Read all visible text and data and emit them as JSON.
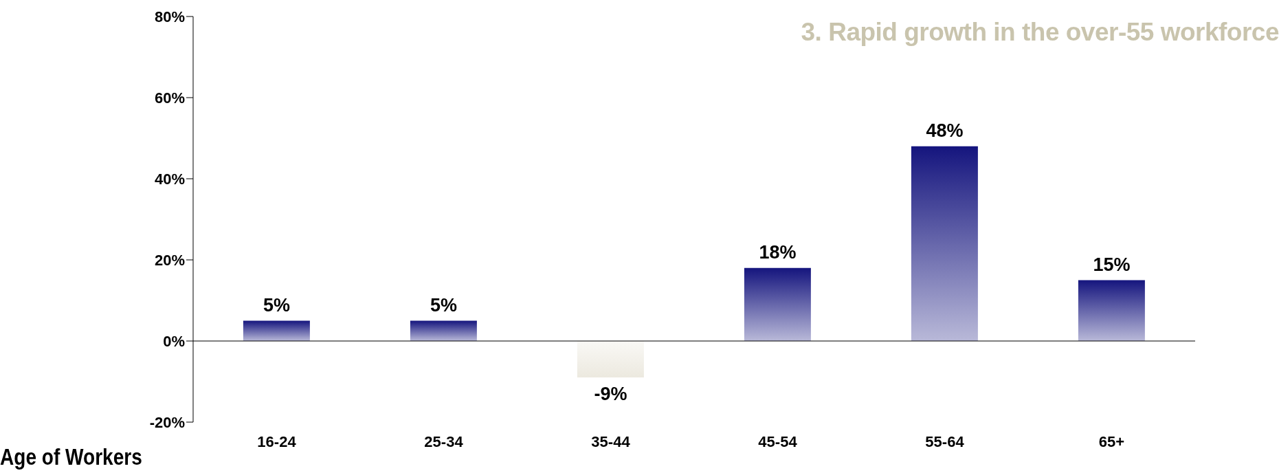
{
  "chart_data": {
    "type": "bar",
    "title": "3.  Rapid growth in the over-55 workforce",
    "xlabel": "Age of Workers",
    "categories": [
      "16-24",
      "25-34",
      "35-44",
      "45-54",
      "55-64",
      "65+"
    ],
    "values": [
      5,
      5,
      -9,
      18,
      48,
      15
    ],
    "colors": [
      "#15157e",
      "#15157e",
      "#ece9df",
      "#15157e",
      "#15157e",
      "#15157e"
    ],
    "value_labels": [
      "5%",
      "5%",
      "-9%",
      "18%",
      "48%",
      "15%"
    ],
    "ylim": [
      -20,
      80
    ],
    "yticks": [
      {
        "value": -20,
        "label": "-20%"
      },
      {
        "value": 0,
        "label": "0%"
      },
      {
        "value": 20,
        "label": "20%"
      },
      {
        "value": 40,
        "label": "40%"
      },
      {
        "value": 60,
        "label": "60%"
      },
      {
        "value": 80,
        "label": "80%"
      }
    ],
    "legend": false
  }
}
